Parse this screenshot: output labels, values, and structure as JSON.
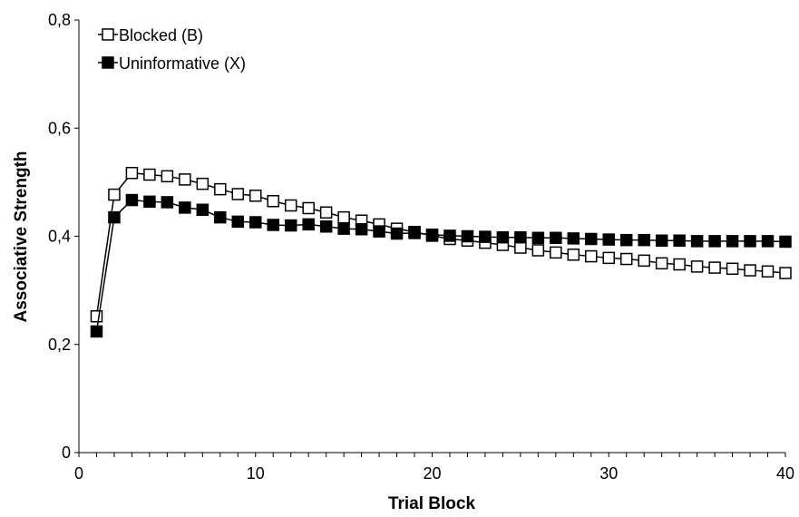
{
  "chart_data": {
    "type": "line",
    "xlabel": "Trial Block",
    "ylabel": "Associative Strength",
    "xlim": [
      0,
      40
    ],
    "ylim": [
      0,
      0.8
    ],
    "x_ticks": [
      0,
      10,
      20,
      30,
      40
    ],
    "x_tick_labels": [
      "0",
      "10",
      "20",
      "30",
      "40"
    ],
    "y_ticks": [
      0,
      0.2,
      0.4,
      0.6,
      0.8
    ],
    "y_tick_labels": [
      "0",
      "0,2",
      "0,4",
      "0,6",
      "0,8"
    ],
    "grid": false,
    "legend_position": "top-left",
    "x": [
      1,
      2,
      3,
      4,
      5,
      6,
      7,
      8,
      9,
      10,
      11,
      12,
      13,
      14,
      15,
      16,
      17,
      18,
      19,
      20,
      21,
      22,
      23,
      24,
      25,
      26,
      27,
      28,
      29,
      30,
      31,
      32,
      33,
      34,
      35,
      36,
      37,
      38,
      39,
      40
    ],
    "series": [
      {
        "name": "Blocked (B)",
        "marker": "open-square",
        "color": "#000000",
        "values": [
          0.252,
          0.477,
          0.517,
          0.514,
          0.511,
          0.505,
          0.497,
          0.487,
          0.478,
          0.475,
          0.465,
          0.457,
          0.452,
          0.444,
          0.435,
          0.429,
          0.422,
          0.414,
          0.408,
          0.401,
          0.395,
          0.392,
          0.388,
          0.384,
          0.379,
          0.374,
          0.37,
          0.366,
          0.363,
          0.36,
          0.358,
          0.355,
          0.35,
          0.348,
          0.344,
          0.342,
          0.34,
          0.337,
          0.335,
          0.332
        ]
      },
      {
        "name": "Uninformative (X)",
        "marker": "filled-square",
        "color": "#000000",
        "values": [
          0.224,
          0.435,
          0.467,
          0.464,
          0.463,
          0.453,
          0.449,
          0.435,
          0.427,
          0.426,
          0.421,
          0.42,
          0.422,
          0.418,
          0.414,
          0.413,
          0.409,
          0.405,
          0.406,
          0.403,
          0.401,
          0.4,
          0.399,
          0.398,
          0.398,
          0.397,
          0.397,
          0.396,
          0.395,
          0.394,
          0.393,
          0.393,
          0.392,
          0.392,
          0.391,
          0.391,
          0.391,
          0.391,
          0.391,
          0.39
        ]
      }
    ]
  }
}
